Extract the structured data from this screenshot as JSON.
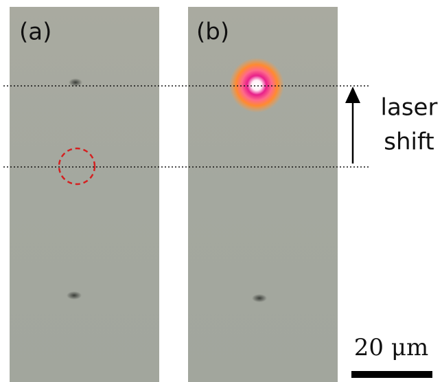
{
  "panels": [
    {
      "label": "(a)"
    },
    {
      "label": "(b)"
    }
  ],
  "annotation": {
    "lines": [
      "laser",
      "shift"
    ]
  },
  "scale_bar": {
    "label": "20 μm"
  }
}
